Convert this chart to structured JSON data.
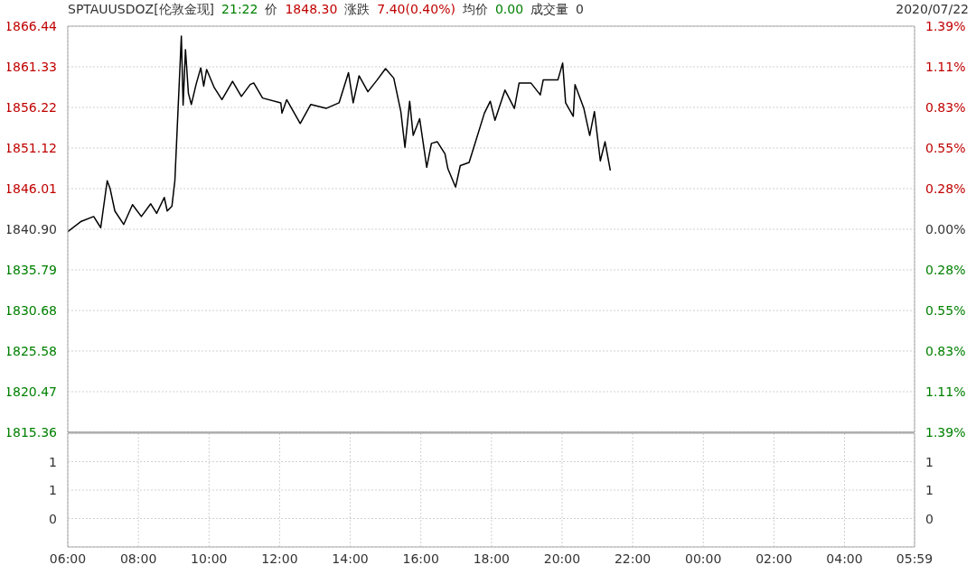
{
  "chart_data": [
    {
      "type": "line",
      "title": "SPTAUUSDOZ[伦敦金现]",
      "annotations": [
        "21:22",
        "价",
        "1848.30",
        "涨跌",
        "7.40(0.40%)",
        "均价",
        "0.00",
        "成交量",
        "0",
        "2020/07/22"
      ],
      "x": [
        "2020-07-22T06:00",
        "2020-07-22T06:23",
        "2020-07-22T06:44",
        "2020-07-22T06:56",
        "2020-07-22T07:07",
        "2020-07-22T07:12",
        "2020-07-22T07:20",
        "2020-07-22T07:35",
        "2020-07-22T07:50",
        "2020-07-22T08:05",
        "2020-07-22T08:21",
        "2020-07-22T08:31",
        "2020-07-22T08:44",
        "2020-07-22T08:49",
        "2020-07-22T08:57",
        "2020-07-22T09:02",
        "2020-07-22T09:07",
        "2020-07-22T09:13",
        "2020-07-22T09:16",
        "2020-07-22T09:20",
        "2020-07-22T09:25",
        "2020-07-22T09:30",
        "2020-07-22T09:38",
        "2020-07-22T09:46",
        "2020-07-22T09:51",
        "2020-07-22T09:56",
        "2020-07-22T10:09",
        "2020-07-22T10:22",
        "2020-07-22T10:40",
        "2020-07-22T10:55",
        "2020-07-22T11:10",
        "2020-07-22T11:16",
        "2020-07-22T11:31",
        "2020-07-22T12:02",
        "2020-07-22T12:04",
        "2020-07-22T12:12",
        "2020-07-22T12:35",
        "2020-07-22T12:53",
        "2020-07-22T13:19",
        "2020-07-22T13:41",
        "2020-07-22T13:57",
        "2020-07-22T14:05",
        "2020-07-22T14:15",
        "2020-07-22T14:30",
        "2020-07-22T14:46",
        "2020-07-22T15:00",
        "2020-07-22T15:14",
        "2020-07-22T15:26",
        "2020-07-22T15:33",
        "2020-07-22T15:41",
        "2020-07-22T15:47",
        "2020-07-22T15:58",
        "2020-07-22T16:10",
        "2020-07-22T16:18",
        "2020-07-22T16:28",
        "2020-07-22T16:41",
        "2020-07-22T16:46",
        "2020-07-22T16:59",
        "2020-07-22T17:07",
        "2020-07-22T17:22",
        "2020-07-22T17:30",
        "2020-07-22T17:48",
        "2020-07-22T17:58",
        "2020-07-22T18:06",
        "2020-07-22T18:23",
        "2020-07-22T18:39",
        "2020-07-22T18:47",
        "2020-07-22T19:07",
        "2020-07-22T19:23",
        "2020-07-22T19:28",
        "2020-07-22T19:53",
        "2020-07-22T20:01",
        "2020-07-22T20:06",
        "2020-07-22T20:19",
        "2020-07-22T20:22",
        "2020-07-22T20:37",
        "2020-07-22T20:47",
        "2020-07-22T20:55",
        "2020-07-22T21:05",
        "2020-07-22T21:13",
        "2020-07-22T21:22"
      ],
      "series": [
        {
          "color": "#000000",
          "values": [
            1840.6,
            1841.9,
            1842.5,
            1841.1,
            1847.0,
            1846.0,
            1843.2,
            1841.5,
            1844.0,
            1842.5,
            1844.1,
            1842.9,
            1844.9,
            1843.2,
            1843.8,
            1847.0,
            1855.3,
            1865.2,
            1856.5,
            1863.5,
            1858.0,
            1856.6,
            1859.1,
            1861.2,
            1858.9,
            1861.0,
            1858.7,
            1857.2,
            1859.5,
            1857.6,
            1859.1,
            1859.3,
            1857.4,
            1856.8,
            1855.5,
            1857.2,
            1854.2,
            1856.6,
            1856.1,
            1856.8,
            1860.6,
            1856.8,
            1860.2,
            1858.2,
            1859.7,
            1861.1,
            1859.9,
            1855.7,
            1851.2,
            1857.0,
            1852.7,
            1854.8,
            1848.7,
            1851.7,
            1851.9,
            1850.4,
            1848.5,
            1846.2,
            1848.9,
            1849.3,
            1851.2,
            1855.5,
            1857.0,
            1854.6,
            1858.4,
            1856.1,
            1859.3,
            1859.3,
            1857.8,
            1859.7,
            1859.7,
            1861.8,
            1856.8,
            1855.1,
            1859.1,
            1856.1,
            1852.7,
            1855.7,
            1849.5,
            1851.9,
            1848.3
          ]
        }
      ],
      "xlim": [
        "2020-07-22T06:00",
        "2020-07-23T05:59"
      ],
      "xticks": [
        {
          "value": "2020-07-22T06:00",
          "label": null
        },
        {
          "value": "2020-07-22T08:00",
          "label": null
        },
        {
          "value": "2020-07-22T10:00",
          "label": null
        },
        {
          "value": "2020-07-22T12:00",
          "label": null
        },
        {
          "value": "2020-07-22T14:00",
          "label": null
        },
        {
          "value": "2020-07-22T16:00",
          "label": null
        },
        {
          "value": "2020-07-22T18:00",
          "label": null
        },
        {
          "value": "2020-07-22T20:00",
          "label": null
        },
        {
          "value": "2020-07-22T22:00",
          "label": null
        },
        {
          "value": "2020-07-23T00:00",
          "label": null
        },
        {
          "value": "2020-07-23T02:00",
          "label": null
        },
        {
          "value": "2020-07-23T04:00",
          "label": null
        },
        {
          "value": "2020-07-23T05:59",
          "label": null
        }
      ],
      "ylim": [
        1815.36,
        1866.44
      ],
      "yticks": [
        1815.36,
        1820.47,
        1825.58,
        1830.68,
        1835.79,
        {
          "value": 1840.9,
          "label": "1840.90"
        },
        1846.01,
        1851.12,
        1856.22,
        1861.33,
        1866.44
      ],
      "y2lim": [
        -1.387,
        1.387
      ],
      "y2ticks": [
        {
          "value": -1.387,
          "label": "1.39%"
        },
        {
          "value": -1.11,
          "label": "1.11%"
        },
        {
          "value": -0.832,
          "label": "0.83%"
        },
        {
          "value": -0.555,
          "label": "0.55%"
        },
        {
          "value": -0.278,
          "label": "0.28%"
        },
        {
          "value": 0,
          "label": "0.00%"
        },
        {
          "value": 0.278,
          "label": "0.28%"
        },
        {
          "value": 0.555,
          "label": "0.55%"
        },
        {
          "value": 0.832,
          "label": "0.83%"
        },
        {
          "value": 1.11,
          "label": "1.11%"
        },
        {
          "value": 1.387,
          "label": "1.39%"
        }
      ],
      "grid": true,
      "legend": false,
      "marker": "none",
      "line_style": "solid",
      "tick_labels": "y"
    },
    {
      "type": "bar",
      "xlim": [
        "2020-07-22T06:00",
        "2020-07-23T05:59"
      ],
      "xticks": [
        {
          "value": "2020-07-22T06:00",
          "label": "06:00"
        },
        {
          "value": "2020-07-22T08:00",
          "label": "08:00"
        },
        {
          "value": "2020-07-22T10:00",
          "label": "10:00"
        },
        {
          "value": "2020-07-22T12:00",
          "label": "12:00"
        },
        {
          "value": "2020-07-22T14:00",
          "label": "14:00"
        },
        {
          "value": "2020-07-22T16:00",
          "label": "16:00"
        },
        {
          "value": "2020-07-22T18:00",
          "label": "18:00"
        },
        {
          "value": "2020-07-22T20:00",
          "label": "20:00"
        },
        {
          "value": "2020-07-22T22:00",
          "label": "22:00"
        },
        {
          "value": "2020-07-23T00:00",
          "label": "00:00"
        },
        {
          "value": "2020-07-23T02:00",
          "label": "02:00"
        },
        {
          "value": "2020-07-23T04:00",
          "label": "04:00"
        },
        {
          "value": "2020-07-23T05:59",
          "label": "05:59"
        }
      ],
      "ylim": [
        0,
        1
      ],
      "yticks": [
        {
          "value": 0.25,
          "label": "0"
        },
        {
          "value": 0.5,
          "label": "1"
        },
        {
          "value": 0.75,
          "label": "1"
        }
      ],
      "y2lim": [
        0,
        1
      ],
      "y2ticks": [
        {
          "value": 0.25,
          "label": "0"
        },
        {
          "value": 0.5,
          "label": "1"
        },
        {
          "value": 0.75,
          "label": "1"
        }
      ],
      "grid": true
    }
  ]
}
